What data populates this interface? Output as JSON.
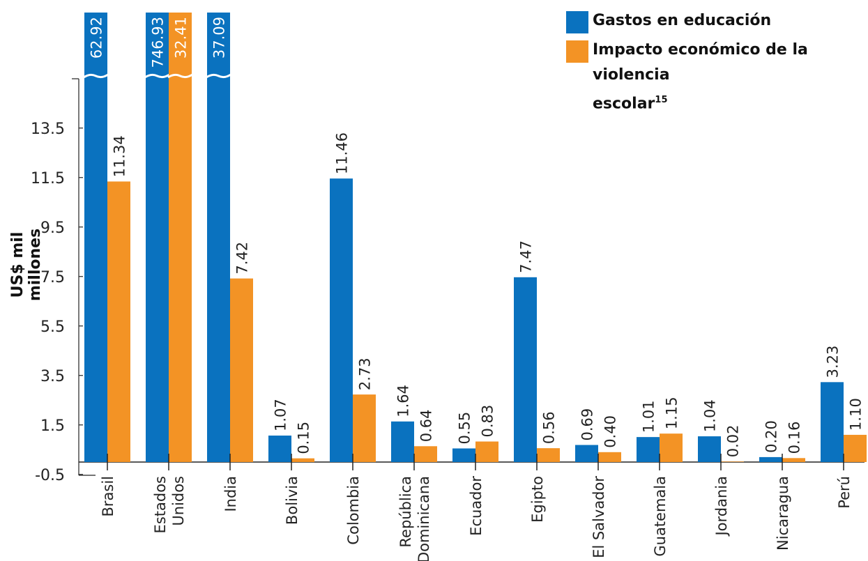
{
  "chart_data": {
    "type": "bar",
    "ylabel": "US$ mil millones",
    "yticks": [
      "13.5",
      "11.5",
      "9.5",
      "7.5",
      "5.5",
      "3.5",
      "1.5",
      "-0.5"
    ],
    "ylim": [
      -0.5,
      15.5
    ],
    "axis_break": true,
    "categories": [
      [
        "Brasil"
      ],
      [
        "Estados",
        "Unidos"
      ],
      [
        "India"
      ],
      [
        "Bolivia"
      ],
      [
        "Colombia"
      ],
      [
        "República",
        "Dominicana"
      ],
      [
        "Ecuador"
      ],
      [
        "Egipto"
      ],
      [
        "El Salvador"
      ],
      [
        "Guatemala"
      ],
      [
        "Jordania"
      ],
      [
        "Nicaragua"
      ],
      [
        "Perú"
      ]
    ],
    "series": [
      {
        "name": "Gastos en educación",
        "color": "#0a72bf",
        "values": [
          62.92,
          746.93,
          37.09,
          1.07,
          11.46,
          1.64,
          0.55,
          7.47,
          0.69,
          1.01,
          1.04,
          0.2,
          3.23
        ],
        "labels": [
          "62.92",
          "746.93",
          "37.09",
          "1.07",
          "11.46",
          "1.64",
          "0.55",
          "7.47",
          "0.69",
          "1.01",
          "1.04",
          "0.20",
          "3.23"
        ]
      },
      {
        "name": "Impacto económico de la violencia",
        "name_line2": "escolar",
        "name_sup": "15",
        "color": "#f39325",
        "values": [
          11.34,
          32.41,
          7.42,
          0.15,
          2.73,
          0.64,
          0.83,
          0.56,
          0.4,
          1.15,
          0.02,
          0.16,
          1.1
        ],
        "labels": [
          "11.34",
          "32.41",
          "7.42",
          "0.15",
          "2.73",
          "0.64",
          "0.83",
          "0.56",
          "0.40",
          "1.15",
          "0.02",
          "0.16",
          "1.10"
        ]
      }
    ],
    "legend_position": "top-right"
  }
}
